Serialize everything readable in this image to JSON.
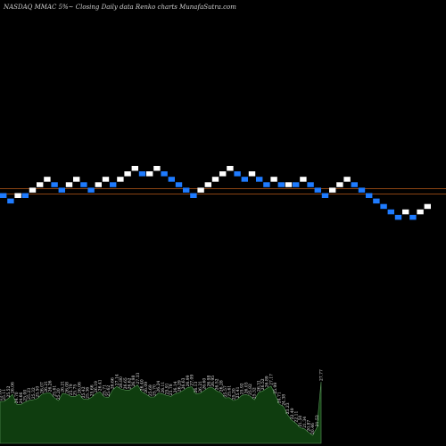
{
  "header": {
    "title": "NASDAQ MMAC 5%~ Closing Daily data Renko charts MunafaSutra.com"
  },
  "colors": {
    "background": "#000000",
    "up_brick": "#ffffff",
    "down_brick": "#1e7bff",
    "reference_line": "#b85a1a",
    "volume_fill": "#0f3d0f",
    "volume_stroke": "#5c9b5c"
  },
  "chart_data": {
    "type": "renko",
    "title": "NASDAQ MMAC 5%~ Closing Daily data Renko charts MunafaSutra.com",
    "brick_size_note": "5%",
    "bricks": [
      {
        "level": 13,
        "dir": "down"
      },
      {
        "level": 12,
        "dir": "down"
      },
      {
        "level": 13,
        "dir": "up"
      },
      {
        "level": 13,
        "dir": "down"
      },
      {
        "level": 14,
        "dir": "up"
      },
      {
        "level": 15,
        "dir": "up"
      },
      {
        "level": 16,
        "dir": "up"
      },
      {
        "level": 15,
        "dir": "down"
      },
      {
        "level": 14,
        "dir": "down"
      },
      {
        "level": 15,
        "dir": "up"
      },
      {
        "level": 16,
        "dir": "up"
      },
      {
        "level": 15,
        "dir": "down"
      },
      {
        "level": 14,
        "dir": "down"
      },
      {
        "level": 15,
        "dir": "up"
      },
      {
        "level": 16,
        "dir": "up"
      },
      {
        "level": 15,
        "dir": "down"
      },
      {
        "level": 16,
        "dir": "up"
      },
      {
        "level": 17,
        "dir": "up"
      },
      {
        "level": 18,
        "dir": "up"
      },
      {
        "level": 17,
        "dir": "down"
      },
      {
        "level": 17,
        "dir": "up"
      },
      {
        "level": 18,
        "dir": "up"
      },
      {
        "level": 17,
        "dir": "down"
      },
      {
        "level": 16,
        "dir": "down"
      },
      {
        "level": 15,
        "dir": "down"
      },
      {
        "level": 14,
        "dir": "down"
      },
      {
        "level": 13,
        "dir": "down"
      },
      {
        "level": 14,
        "dir": "up"
      },
      {
        "level": 15,
        "dir": "up"
      },
      {
        "level": 16,
        "dir": "up"
      },
      {
        "level": 17,
        "dir": "up"
      },
      {
        "level": 18,
        "dir": "up"
      },
      {
        "level": 17,
        "dir": "down"
      },
      {
        "level": 16,
        "dir": "down"
      },
      {
        "level": 17,
        "dir": "up"
      },
      {
        "level": 16,
        "dir": "down"
      },
      {
        "level": 15,
        "dir": "down"
      },
      {
        "level": 16,
        "dir": "up"
      },
      {
        "level": 15,
        "dir": "down"
      },
      {
        "level": 15,
        "dir": "up"
      },
      {
        "level": 15,
        "dir": "down"
      },
      {
        "level": 16,
        "dir": "up"
      },
      {
        "level": 15,
        "dir": "down"
      },
      {
        "level": 14,
        "dir": "down"
      },
      {
        "level": 13,
        "dir": "down"
      },
      {
        "level": 14,
        "dir": "up"
      },
      {
        "level": 15,
        "dir": "up"
      },
      {
        "level": 16,
        "dir": "up"
      },
      {
        "level": 15,
        "dir": "down"
      },
      {
        "level": 14,
        "dir": "down"
      },
      {
        "level": 13,
        "dir": "down"
      },
      {
        "level": 12,
        "dir": "down"
      },
      {
        "level": 11,
        "dir": "down"
      },
      {
        "level": 10,
        "dir": "down"
      },
      {
        "level": 9,
        "dir": "down"
      },
      {
        "level": 10,
        "dir": "up"
      },
      {
        "level": 9,
        "dir": "down"
      },
      {
        "level": 10,
        "dir": "up"
      },
      {
        "level": 11,
        "dir": "up"
      }
    ],
    "reference_levels": [
      15,
      13
    ],
    "volume_labels": [
      "25.06",
      "25.11",
      "25.52",
      "26.06",
      "24.70",
      "24.66",
      "25.00",
      "25.23",
      "25.32",
      "25.50",
      "26.07",
      "26.21",
      "26.26",
      "25.61",
      "25.20",
      "26.21",
      "26.08",
      "25.79",
      "25.75",
      "26.06",
      "25.42",
      "25.36",
      "25.66",
      "26.19",
      "26.41",
      "25.71",
      "25.62",
      "26.66",
      "27.14",
      "26.80",
      "26.65",
      "26.62",
      "26.98",
      "27.33",
      "26.40",
      "26.09",
      "25.69",
      "25.70",
      "26.24",
      "26.11",
      "25.91",
      "25.78",
      "26.14",
      "26.29",
      "26.63",
      "26.99",
      "27.09",
      "26.13",
      "26.21",
      "26.60",
      "26.98",
      "26.95",
      "26.52",
      "26.28",
      "25.57",
      "25.61",
      "25.20",
      "25.41",
      "25.92",
      "26.03",
      "25.82",
      "25.32",
      "26.31",
      "26.52",
      "26.89",
      "27.17",
      "25.99",
      "24.71",
      "24.38",
      "23.23",
      "22.49",
      "22.11",
      "21.50",
      "21.34",
      "20.87",
      "20.46",
      "21.53",
      "27.77"
    ]
  }
}
